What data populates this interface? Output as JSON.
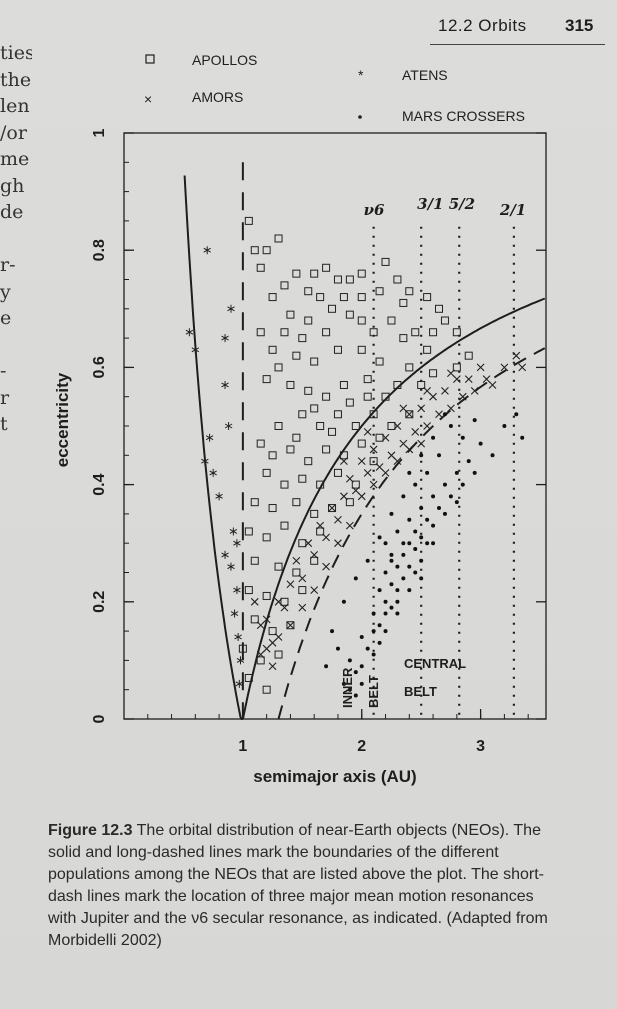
{
  "header": {
    "chapter": "12.2 Orbits",
    "page_number": "315"
  },
  "left_margin_fragments": [
    "ties",
    "the",
    "len",
    "/or",
    "me",
    "gh",
    "de",
    "",
    "r-",
    "y",
    "e",
    "",
    "-",
    "r",
    "t",
    "",
    ""
  ],
  "legend": [
    {
      "marker": "□",
      "label": "APOLLOS"
    },
    {
      "marker": "×",
      "label": "AMORS"
    },
    {
      "marker": "*",
      "label": "ATENS"
    },
    {
      "marker": "•",
      "label": "MARS CROSSERS"
    }
  ],
  "chart_data": {
    "type": "scatter",
    "xlabel": "semimajor axis (AU)",
    "ylabel": "eccentricity",
    "xlim": [
      0.0,
      3.55
    ],
    "ylim": [
      0.0,
      1.0
    ],
    "xticks": [
      1,
      2,
      3
    ],
    "xtick_labels": [
      "1",
      "2",
      "3"
    ],
    "yticks": [
      0,
      0.2,
      0.4,
      0.6,
      0.8,
      1.0
    ],
    "ytick_labels": [
      "0",
      "0.2",
      "0.4",
      "0.6",
      "0.8",
      "1"
    ],
    "resonances": [
      {
        "label": "ν6",
        "a": 2.1
      },
      {
        "label": "3/1",
        "a": 2.5
      },
      {
        "label": "5/2",
        "a": 2.82
      },
      {
        "label": "2/1",
        "a": 3.28
      }
    ],
    "region_labels": [
      "INNER BELT",
      "CENTRAL BELT"
    ],
    "series": [
      {
        "name": "APOLLOS",
        "marker": "square",
        "points": [
          [
            1.05,
            0.85
          ],
          [
            1.1,
            0.8
          ],
          [
            1.2,
            0.8
          ],
          [
            1.3,
            0.82
          ],
          [
            1.15,
            0.77
          ],
          [
            1.25,
            0.72
          ],
          [
            1.35,
            0.74
          ],
          [
            1.45,
            0.76
          ],
          [
            1.55,
            0.73
          ],
          [
            1.6,
            0.76
          ],
          [
            1.7,
            0.77
          ],
          [
            1.8,
            0.75
          ],
          [
            1.9,
            0.75
          ],
          [
            2.0,
            0.76
          ],
          [
            2.2,
            0.78
          ],
          [
            2.3,
            0.75
          ],
          [
            2.4,
            0.73
          ],
          [
            2.55,
            0.72
          ],
          [
            2.15,
            0.73
          ],
          [
            1.75,
            0.7
          ],
          [
            1.85,
            0.72
          ],
          [
            1.4,
            0.69
          ],
          [
            1.55,
            0.68
          ],
          [
            1.7,
            0.66
          ],
          [
            1.9,
            0.69
          ],
          [
            2.0,
            0.68
          ],
          [
            2.1,
            0.66
          ],
          [
            2.25,
            0.68
          ],
          [
            2.35,
            0.65
          ],
          [
            2.6,
            0.66
          ],
          [
            2.7,
            0.68
          ],
          [
            2.8,
            0.66
          ],
          [
            2.9,
            0.62
          ],
          [
            2.55,
            0.63
          ],
          [
            2.4,
            0.6
          ],
          [
            2.15,
            0.61
          ],
          [
            2.0,
            0.63
          ],
          [
            1.8,
            0.63
          ],
          [
            1.6,
            0.61
          ],
          [
            1.45,
            0.62
          ],
          [
            1.3,
            0.6
          ],
          [
            1.2,
            0.58
          ],
          [
            1.4,
            0.57
          ],
          [
            1.55,
            0.56
          ],
          [
            1.7,
            0.55
          ],
          [
            1.85,
            0.57
          ],
          [
            2.05,
            0.58
          ],
          [
            2.2,
            0.55
          ],
          [
            2.3,
            0.57
          ],
          [
            2.5,
            0.57
          ],
          [
            2.6,
            0.59
          ],
          [
            2.8,
            0.6
          ],
          [
            1.5,
            0.52
          ],
          [
            1.65,
            0.5
          ],
          [
            1.8,
            0.52
          ],
          [
            1.95,
            0.5
          ],
          [
            2.1,
            0.52
          ],
          [
            2.25,
            0.5
          ],
          [
            1.3,
            0.5
          ],
          [
            1.15,
            0.47
          ],
          [
            1.25,
            0.45
          ],
          [
            1.4,
            0.46
          ],
          [
            1.55,
            0.44
          ],
          [
            1.7,
            0.46
          ],
          [
            1.85,
            0.45
          ],
          [
            2.0,
            0.47
          ],
          [
            2.1,
            0.44
          ],
          [
            1.2,
            0.42
          ],
          [
            1.35,
            0.4
          ],
          [
            1.5,
            0.41
          ],
          [
            1.65,
            0.4
          ],
          [
            1.8,
            0.42
          ],
          [
            1.95,
            0.4
          ],
          [
            1.1,
            0.37
          ],
          [
            1.25,
            0.36
          ],
          [
            1.45,
            0.37
          ],
          [
            1.6,
            0.35
          ],
          [
            1.75,
            0.36
          ],
          [
            1.9,
            0.37
          ],
          [
            1.05,
            0.32
          ],
          [
            1.2,
            0.31
          ],
          [
            1.35,
            0.33
          ],
          [
            1.5,
            0.3
          ],
          [
            1.65,
            0.32
          ],
          [
            1.1,
            0.27
          ],
          [
            1.3,
            0.26
          ],
          [
            1.45,
            0.25
          ],
          [
            1.6,
            0.27
          ],
          [
            1.05,
            0.22
          ],
          [
            1.2,
            0.21
          ],
          [
            1.35,
            0.2
          ],
          [
            1.5,
            0.22
          ],
          [
            1.1,
            0.17
          ],
          [
            1.25,
            0.15
          ],
          [
            1.4,
            0.16
          ],
          [
            1.0,
            0.12
          ],
          [
            1.15,
            0.1
          ],
          [
            1.3,
            0.11
          ],
          [
            1.05,
            0.07
          ],
          [
            1.2,
            0.05
          ],
          [
            1.45,
            0.48
          ],
          [
            1.6,
            0.53
          ],
          [
            1.75,
            0.49
          ],
          [
            1.9,
            0.54
          ],
          [
            2.05,
            0.55
          ],
          [
            2.15,
            0.48
          ],
          [
            2.4,
            0.52
          ],
          [
            2.45,
            0.66
          ],
          [
            2.65,
            0.7
          ],
          [
            2.35,
            0.71
          ],
          [
            2.0,
            0.72
          ],
          [
            1.65,
            0.72
          ],
          [
            1.5,
            0.65
          ],
          [
            1.35,
            0.66
          ],
          [
            1.25,
            0.63
          ],
          [
            1.15,
            0.66
          ]
        ]
      },
      {
        "name": "AMORS",
        "marker": "cross",
        "points": [
          [
            1.1,
            0.2
          ],
          [
            1.15,
            0.16
          ],
          [
            1.2,
            0.12
          ],
          [
            1.25,
            0.09
          ],
          [
            1.3,
            0.14
          ],
          [
            1.35,
            0.19
          ],
          [
            1.4,
            0.23
          ],
          [
            1.45,
            0.27
          ],
          [
            1.5,
            0.24
          ],
          [
            1.55,
            0.3
          ],
          [
            1.6,
            0.28
          ],
          [
            1.65,
            0.33
          ],
          [
            1.7,
            0.31
          ],
          [
            1.75,
            0.36
          ],
          [
            1.8,
            0.34
          ],
          [
            1.85,
            0.38
          ],
          [
            1.9,
            0.41
          ],
          [
            1.95,
            0.39
          ],
          [
            2.0,
            0.44
          ],
          [
            2.05,
            0.42
          ],
          [
            2.1,
            0.46
          ],
          [
            2.15,
            0.43
          ],
          [
            2.2,
            0.48
          ],
          [
            2.25,
            0.45
          ],
          [
            2.3,
            0.5
          ],
          [
            2.35,
            0.47
          ],
          [
            2.4,
            0.52
          ],
          [
            2.45,
            0.49
          ],
          [
            2.5,
            0.53
          ],
          [
            2.55,
            0.5
          ],
          [
            2.6,
            0.55
          ],
          [
            2.65,
            0.52
          ],
          [
            2.7,
            0.56
          ],
          [
            2.75,
            0.53
          ],
          [
            2.8,
            0.58
          ],
          [
            2.85,
            0.55
          ],
          [
            2.9,
            0.58
          ],
          [
            2.95,
            0.56
          ],
          [
            3.0,
            0.6
          ],
          [
            3.05,
            0.58
          ],
          [
            3.1,
            0.57
          ],
          [
            3.2,
            0.6
          ],
          [
            3.3,
            0.62
          ],
          [
            3.35,
            0.6
          ],
          [
            2.0,
            0.38
          ],
          [
            2.1,
            0.4
          ],
          [
            2.2,
            0.42
          ],
          [
            2.3,
            0.44
          ],
          [
            2.4,
            0.46
          ],
          [
            2.5,
            0.47
          ],
          [
            1.7,
            0.26
          ],
          [
            1.8,
            0.3
          ],
          [
            1.9,
            0.33
          ],
          [
            1.6,
            0.22
          ],
          [
            1.5,
            0.19
          ],
          [
            1.4,
            0.16
          ],
          [
            1.3,
            0.2
          ],
          [
            1.25,
            0.13
          ],
          [
            1.2,
            0.17
          ],
          [
            1.15,
            0.11
          ],
          [
            2.35,
            0.53
          ],
          [
            2.55,
            0.56
          ],
          [
            2.75,
            0.59
          ],
          [
            2.05,
            0.49
          ],
          [
            1.85,
            0.44
          ]
        ]
      },
      {
        "name": "ATENS",
        "marker": "star",
        "points": [
          [
            0.55,
            0.66
          ],
          [
            0.6,
            0.63
          ],
          [
            0.7,
            0.8
          ],
          [
            0.72,
            0.48
          ],
          [
            0.68,
            0.44
          ],
          [
            0.85,
            0.65
          ],
          [
            0.9,
            0.7
          ],
          [
            0.75,
            0.42
          ],
          [
            0.8,
            0.38
          ],
          [
            0.92,
            0.32
          ],
          [
            0.95,
            0.3
          ],
          [
            0.85,
            0.28
          ],
          [
            0.9,
            0.26
          ],
          [
            0.95,
            0.22
          ],
          [
            0.93,
            0.18
          ],
          [
            0.96,
            0.14
          ],
          [
            0.98,
            0.1
          ],
          [
            0.97,
            0.06
          ],
          [
            0.85,
            0.57
          ],
          [
            0.88,
            0.5
          ]
        ]
      },
      {
        "name": "MARS CROSSERS",
        "marker": "dot",
        "points": [
          [
            2.2,
            0.3
          ],
          [
            2.25,
            0.28
          ],
          [
            2.3,
            0.32
          ],
          [
            2.35,
            0.3
          ],
          [
            2.4,
            0.34
          ],
          [
            2.45,
            0.32
          ],
          [
            2.5,
            0.36
          ],
          [
            2.55,
            0.34
          ],
          [
            2.6,
            0.38
          ],
          [
            2.65,
            0.36
          ],
          [
            2.2,
            0.25
          ],
          [
            2.25,
            0.27
          ],
          [
            2.3,
            0.26
          ],
          [
            2.35,
            0.28
          ],
          [
            2.4,
            0.3
          ],
          [
            2.45,
            0.29
          ],
          [
            2.5,
            0.31
          ],
          [
            2.55,
            0.3
          ],
          [
            2.6,
            0.33
          ],
          [
            2.15,
            0.22
          ],
          [
            2.2,
            0.2
          ],
          [
            2.25,
            0.23
          ],
          [
            2.3,
            0.22
          ],
          [
            2.35,
            0.24
          ],
          [
            2.4,
            0.26
          ],
          [
            2.45,
            0.25
          ],
          [
            2.5,
            0.27
          ],
          [
            2.1,
            0.18
          ],
          [
            2.15,
            0.16
          ],
          [
            2.2,
            0.18
          ],
          [
            2.25,
            0.19
          ],
          [
            2.3,
            0.2
          ],
          [
            2.0,
            0.14
          ],
          [
            2.05,
            0.12
          ],
          [
            2.1,
            0.15
          ],
          [
            2.15,
            0.13
          ],
          [
            1.9,
            0.1
          ],
          [
            1.95,
            0.08
          ],
          [
            2.0,
            0.09
          ],
          [
            1.85,
            0.06
          ],
          [
            1.9,
            0.05
          ],
          [
            1.95,
            0.04
          ],
          [
            2.7,
            0.4
          ],
          [
            2.75,
            0.38
          ],
          [
            2.8,
            0.42
          ],
          [
            2.85,
            0.4
          ],
          [
            2.9,
            0.44
          ],
          [
            2.95,
            0.42
          ],
          [
            3.0,
            0.47
          ],
          [
            3.1,
            0.45
          ],
          [
            3.2,
            0.5
          ],
          [
            3.3,
            0.52
          ],
          [
            3.35,
            0.48
          ],
          [
            2.65,
            0.45
          ],
          [
            2.75,
            0.5
          ],
          [
            2.85,
            0.48
          ],
          [
            2.95,
            0.51
          ],
          [
            2.55,
            0.42
          ],
          [
            2.45,
            0.4
          ],
          [
            2.35,
            0.38
          ],
          [
            2.25,
            0.35
          ],
          [
            2.15,
            0.31
          ],
          [
            2.05,
            0.27
          ],
          [
            1.95,
            0.24
          ],
          [
            1.85,
            0.2
          ],
          [
            1.75,
            0.15
          ],
          [
            2.6,
            0.3
          ],
          [
            2.7,
            0.35
          ],
          [
            2.8,
            0.37
          ],
          [
            2.4,
            0.22
          ],
          [
            2.5,
            0.24
          ],
          [
            2.3,
            0.18
          ],
          [
            2.2,
            0.15
          ],
          [
            2.1,
            0.11
          ],
          [
            2.0,
            0.06
          ],
          [
            1.8,
            0.12
          ],
          [
            1.7,
            0.09
          ],
          [
            2.6,
            0.48
          ],
          [
            2.7,
            0.52
          ],
          [
            2.5,
            0.45
          ],
          [
            2.4,
            0.42
          ]
        ]
      }
    ],
    "boundaries": [
      {
        "style": "solid",
        "description": "q = 1.0 AU curve"
      },
      {
        "style": "solid",
        "description": "Q = 0.983 AU left boundary"
      },
      {
        "style": "long-dashed",
        "description": "q = 1.3 AU curve"
      },
      {
        "style": "long-dashed",
        "description": "a = 1 boundary"
      }
    ]
  },
  "caption": {
    "figure_number": "Figure 12.3",
    "text": " The orbital distribution of near-Earth objects (NEOs). The solid and long-dashed lines mark the boundaries of the different populations among the NEOs that are listed above the plot. The short-dash lines mark the location of three major mean motion resonances with Jupiter and the ν6 secular resonance, as indicated. (Adapted from Morbidelli 2002)"
  }
}
